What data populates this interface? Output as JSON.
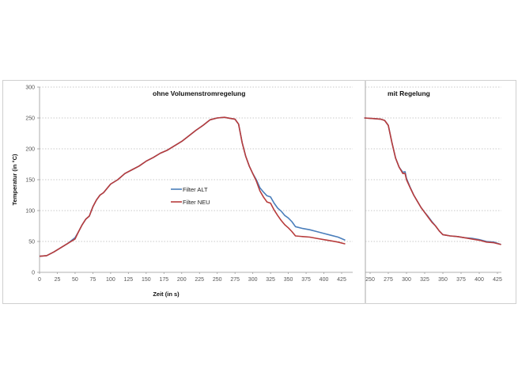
{
  "chart_data": [
    {
      "type": "line",
      "title": "ohne Volumenstromregelung",
      "xlabel": "Zeit (in s)",
      "ylabel": "Temperatur (in °C)",
      "xlim": [
        0,
        440
      ],
      "ylim": [
        0,
        300
      ],
      "xticks": [
        "0",
        "25",
        "50",
        "75",
        "100",
        "125",
        "150",
        "175",
        "200",
        "225",
        "250",
        "275",
        "300",
        "325",
        "350",
        "375",
        "400",
        "425"
      ],
      "yticks": [
        "0",
        "50",
        "100",
        "150",
        "200",
        "250",
        "300"
      ],
      "grid": "horizontal dotted",
      "legend_position": "center",
      "legend": [
        "Filter ALT",
        "Filter NEU"
      ],
      "series": [
        {
          "name": "Filter ALT",
          "color": "#4a7ebb",
          "x": [
            0,
            10,
            20,
            30,
            40,
            50,
            55,
            60,
            65,
            70,
            75,
            80,
            85,
            90,
            100,
            110,
            120,
            130,
            140,
            150,
            160,
            170,
            180,
            190,
            200,
            210,
            220,
            230,
            240,
            250,
            260,
            270,
            275,
            280,
            285,
            290,
            295,
            300,
            305,
            310,
            315,
            320,
            325,
            330,
            335,
            340,
            345,
            350,
            355,
            360,
            370,
            380,
            390,
            400,
            410,
            420,
            430
          ],
          "y": [
            26,
            27,
            33,
            40,
            47,
            56,
            66,
            77,
            86,
            91,
            106,
            117,
            125,
            129,
            143,
            150,
            160,
            166,
            172,
            180,
            186,
            193,
            198,
            205,
            212,
            221,
            230,
            238,
            247,
            250,
            251,
            249,
            248,
            240,
            210,
            188,
            172,
            160,
            150,
            137,
            130,
            124,
            122,
            112,
            104,
            99,
            92,
            88,
            82,
            74,
            71,
            69,
            66,
            63,
            60,
            57,
            52
          ]
        },
        {
          "name": "Filter NEU",
          "color": "#b83c3c",
          "x": [
            0,
            10,
            20,
            30,
            40,
            50,
            55,
            60,
            65,
            70,
            75,
            80,
            85,
            90,
            100,
            110,
            120,
            130,
            140,
            150,
            160,
            170,
            180,
            190,
            200,
            210,
            220,
            230,
            240,
            250,
            260,
            270,
            275,
            280,
            285,
            290,
            295,
            300,
            305,
            310,
            315,
            320,
            325,
            330,
            335,
            340,
            345,
            350,
            355,
            360,
            370,
            380,
            390,
            400,
            410,
            420,
            430
          ],
          "y": [
            26,
            27,
            33,
            40,
            47,
            54,
            66,
            77,
            86,
            91,
            106,
            117,
            125,
            129,
            143,
            150,
            160,
            166,
            172,
            180,
            186,
            193,
            198,
            205,
            212,
            221,
            230,
            238,
            247,
            250,
            251,
            249,
            248,
            240,
            210,
            188,
            172,
            160,
            148,
            132,
            122,
            114,
            112,
            101,
            92,
            84,
            77,
            72,
            66,
            59,
            58,
            57,
            55,
            53,
            51,
            49,
            46
          ]
        }
      ]
    },
    {
      "type": "line",
      "title": "mit Regelung",
      "xlim": [
        242,
        432
      ],
      "ylim": [
        0,
        300
      ],
      "xticks": [
        "250",
        "275",
        "300",
        "325",
        "350",
        "375",
        "400",
        "425"
      ],
      "grid": "horizontal dotted",
      "series": [
        {
          "name": "Filter ALT",
          "color": "#4a7ebb",
          "x": [
            242,
            255,
            265,
            270,
            275,
            280,
            285,
            290,
            295,
            298,
            300,
            305,
            310,
            315,
            320,
            325,
            330,
            335,
            340,
            345,
            350,
            355,
            360,
            370,
            380,
            390,
            400,
            410,
            420,
            430
          ],
          "y": [
            250,
            249,
            248,
            246,
            238,
            210,
            185,
            170,
            162,
            163,
            152,
            138,
            125,
            115,
            105,
            97,
            90,
            82,
            75,
            67,
            61,
            60,
            59,
            58,
            56,
            55,
            53,
            50,
            49,
            45
          ]
        },
        {
          "name": "Filter NEU",
          "color": "#b83c3c",
          "x": [
            242,
            255,
            265,
            270,
            275,
            280,
            285,
            290,
            295,
            298,
            300,
            305,
            310,
            315,
            320,
            325,
            330,
            335,
            340,
            345,
            350,
            355,
            360,
            370,
            380,
            390,
            400,
            410,
            420,
            430
          ],
          "y": [
            250,
            249,
            248,
            246,
            238,
            210,
            185,
            170,
            160,
            160,
            150,
            137,
            125,
            115,
            105,
            97,
            89,
            81,
            75,
            67,
            61,
            60,
            59,
            58,
            56,
            54,
            52,
            49,
            48,
            45
          ]
        }
      ]
    }
  ]
}
